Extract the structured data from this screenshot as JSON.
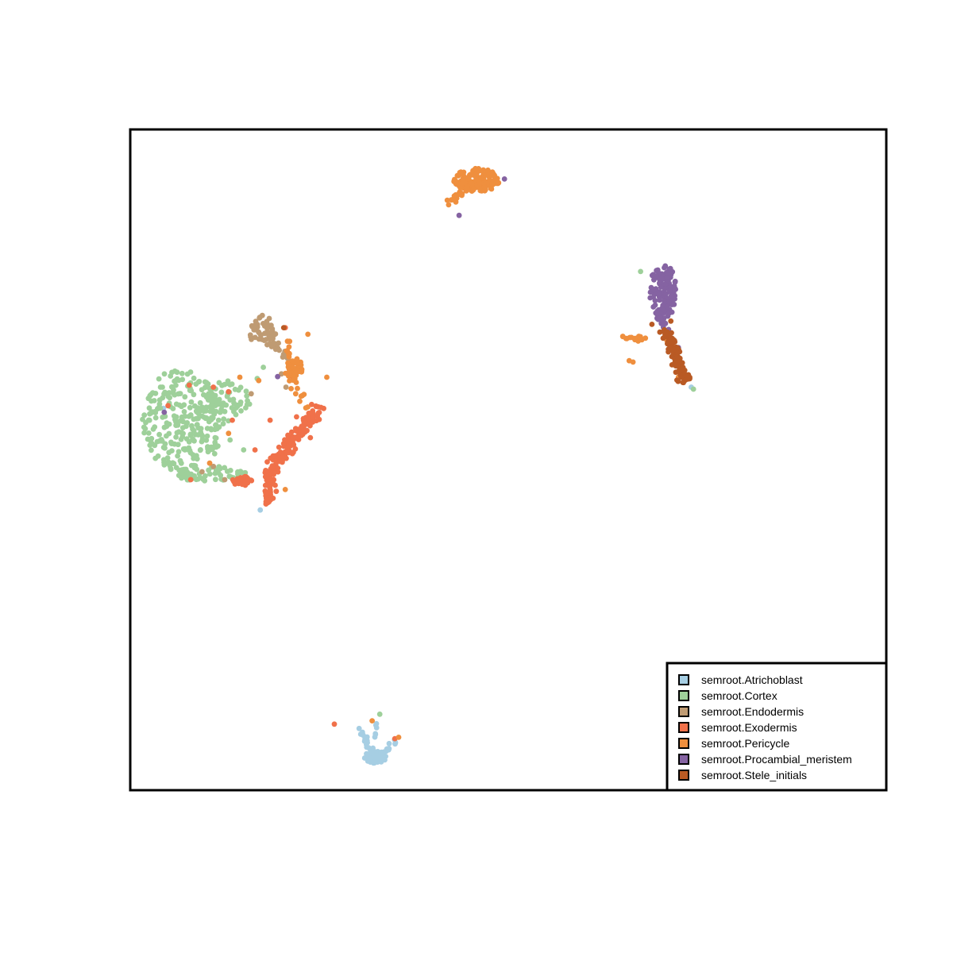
{
  "chart_data": {
    "type": "scatter",
    "title": "",
    "xlabel": "",
    "ylabel": "",
    "xlim": [
      0,
      100
    ],
    "ylim": [
      0,
      100
    ],
    "axes_visible": false,
    "grid": false,
    "legend_position": "bottom-right",
    "series": [
      {
        "name": "semroot.Atrichoblast",
        "color": "#a6cee3",
        "clusters": [
          {
            "shape": "segment",
            "x1": 30.0,
            "y1": 10.0,
            "x2": 32.7,
            "y2": 4.5,
            "n": 20,
            "spread": 0.4
          },
          {
            "shape": "segment",
            "x1": 32.7,
            "y1": 4.5,
            "x2": 35.0,
            "y2": 7.5,
            "n": 16,
            "spread": 0.4
          },
          {
            "shape": "segment",
            "x1": 32.5,
            "y1": 11.2,
            "x2": 32.6,
            "y2": 6.0,
            "n": 6,
            "spread": 0.3
          },
          {
            "shape": "ellipse",
            "cx": 32.5,
            "cy": 5.0,
            "rx": 1.6,
            "ry": 0.9,
            "n": 40
          },
          {
            "shape": "points",
            "points": [
              [
                17.2,
                42.4
              ],
              [
                74.2,
                61.0
              ],
              [
                4.4,
                57.8
              ]
            ]
          }
        ]
      },
      {
        "name": "semroot.Cortex",
        "color": "#9ed09a",
        "clusters": [
          {
            "shape": "ellipse",
            "cx": 7.0,
            "cy": 56.0,
            "rx": 5.4,
            "ry": 8.0,
            "n": 260
          },
          {
            "shape": "ellipse",
            "cx": 12.5,
            "cy": 59.0,
            "rx": 3.4,
            "ry": 3.2,
            "n": 60
          },
          {
            "shape": "ellipse",
            "cx": 10.5,
            "cy": 47.8,
            "rx": 5.0,
            "ry": 1.2,
            "n": 60
          },
          {
            "shape": "points",
            "points": [
              [
                4.0,
                61.0
              ],
              [
                6.0,
                62.0
              ],
              [
                16.8,
                62.3
              ],
              [
                33.0,
                11.5
              ],
              [
                67.5,
                78.5
              ],
              [
                74.5,
                60.7
              ],
              [
                17.6,
                64.0
              ],
              [
                13.2,
                53.0
              ],
              [
                15.0,
                51.5
              ]
            ]
          }
        ]
      },
      {
        "name": "semroot.Endodermis",
        "color": "#bf9b73",
        "clusters": [
          {
            "shape": "ellipse",
            "cx": 17.5,
            "cy": 69.5,
            "rx": 1.8,
            "ry": 2.4,
            "n": 50
          },
          {
            "shape": "segment",
            "x1": 18.5,
            "y1": 68.0,
            "x2": 21.0,
            "y2": 65.5,
            "n": 20,
            "spread": 0.5
          },
          {
            "shape": "points",
            "points": [
              [
                20.0,
                63.0
              ],
              [
                20.6,
                61.0
              ],
              [
                16.0,
                60.0
              ],
              [
                11.0,
                49.0
              ],
              [
                12.5,
                47.0
              ],
              [
                21.0,
                65.0
              ],
              [
                9.5,
                48.2
              ]
            ]
          }
        ]
      },
      {
        "name": "semroot.Exodermis",
        "color": "#f0714a",
        "clusters": [
          {
            "shape": "segment",
            "x1": 25.0,
            "y1": 58.0,
            "x2": 18.5,
            "y2": 48.5,
            "n": 140,
            "spread": 1.0
          },
          {
            "shape": "segment",
            "x1": 18.5,
            "y1": 48.0,
            "x2": 18.2,
            "y2": 43.5,
            "n": 50,
            "spread": 0.7
          },
          {
            "shape": "ellipse",
            "cx": 14.8,
            "cy": 46.8,
            "rx": 1.4,
            "ry": 0.7,
            "n": 25
          },
          {
            "shape": "points",
            "points": [
              [
                7.8,
                61.3
              ],
              [
                11.0,
                61.0
              ],
              [
                13.0,
                60.3
              ],
              [
                5.0,
                58.2
              ],
              [
                18.5,
                56.0
              ],
              [
                22.0,
                56.5
              ],
              [
                16.5,
                51.5
              ],
              [
                27.0,
                10.0
              ],
              [
                35.0,
                7.8
              ],
              [
                20.5,
                70.0
              ],
              [
                8.0,
                47.0
              ],
              [
                21.5,
                62.5
              ],
              [
                13.5,
                56.0
              ]
            ]
          }
        ]
      },
      {
        "name": "semroot.Pericycle",
        "color": "#ef8f3e",
        "clusters": [
          {
            "shape": "ellipse",
            "cx": 45.8,
            "cy": 92.3,
            "rx": 3.0,
            "ry": 1.8,
            "n": 140
          },
          {
            "shape": "segment",
            "x1": 42.0,
            "y1": 88.8,
            "x2": 44.5,
            "y2": 91.2,
            "n": 25,
            "spread": 0.6
          },
          {
            "shape": "ellipse",
            "cx": 21.5,
            "cy": 64.0,
            "rx": 1.4,
            "ry": 1.3,
            "n": 35
          },
          {
            "shape": "segment",
            "x1": 20.5,
            "y1": 68.0,
            "x2": 22.8,
            "y2": 58.5,
            "n": 30,
            "spread": 0.8
          },
          {
            "shape": "segment",
            "x1": 64.8,
            "y1": 68.5,
            "x2": 68.0,
            "y2": 68.3,
            "n": 14,
            "spread": 0.4
          },
          {
            "shape": "points",
            "points": [
              [
                66.0,
                65.0
              ],
              [
                66.5,
                64.8
              ],
              [
                72.5,
                62.5
              ],
              [
                26.0,
                62.5
              ],
              [
                17.0,
                62.0
              ],
              [
                14.5,
                62.5
              ],
              [
                10.5,
                49.5
              ],
              [
                20.5,
                45.5
              ],
              [
                13.0,
                54.0
              ],
              [
                35.5,
                8.0
              ],
              [
                32.0,
                10.5
              ],
              [
                23.5,
                69.0
              ],
              [
                71.0,
                68.0
              ]
            ]
          }
        ]
      },
      {
        "name": "semroot.Procambial_meristem",
        "color": "#8563a2",
        "clusters": [
          {
            "shape": "ellipse",
            "cx": 70.5,
            "cy": 75.5,
            "rx": 1.8,
            "ry": 4.2,
            "n": 130
          },
          {
            "shape": "segment",
            "x1": 69.8,
            "y1": 72.0,
            "x2": 70.8,
            "y2": 70.0,
            "n": 12,
            "spread": 0.5
          },
          {
            "shape": "points",
            "points": [
              [
                49.5,
                92.5
              ],
              [
                43.5,
                87.0
              ],
              [
                72.5,
                67.0
              ],
              [
                4.5,
                57.2
              ],
              [
                19.5,
                62.6
              ]
            ]
          }
        ]
      },
      {
        "name": "semroot.Stele_initials",
        "color": "#b95a24",
        "clusters": [
          {
            "shape": "segment",
            "x1": 70.8,
            "y1": 69.5,
            "x2": 73.5,
            "y2": 62.0,
            "n": 110,
            "spread": 0.8
          },
          {
            "shape": "points",
            "points": [
              [
                20.3,
                70.0
              ],
              [
                69.0,
                70.5
              ],
              [
                71.5,
                71.0
              ]
            ]
          }
        ]
      }
    ]
  }
}
